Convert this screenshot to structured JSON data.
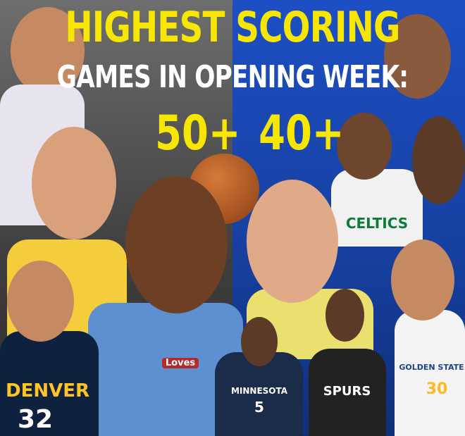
{
  "headline": {
    "line1": "HIGHEST SCORING",
    "line2": "GAMES IN OPENING WEEK:",
    "left_label": "50+",
    "right_label": "40+"
  },
  "jerseys": {
    "denver": "DENVER",
    "denver_number": "32",
    "minnesota": "MINNESOTA",
    "minnesota_number": "5",
    "warriors": "GOLDEN STATE",
    "warriors_number": "30",
    "thunder_patch": "Loves",
    "celtics": "CELTICS",
    "spurs": "SPURS"
  },
  "colors": {
    "title_yellow": "#f7e600",
    "left_bg": "#4a4a4a",
    "right_bg": "#1a47b0"
  }
}
